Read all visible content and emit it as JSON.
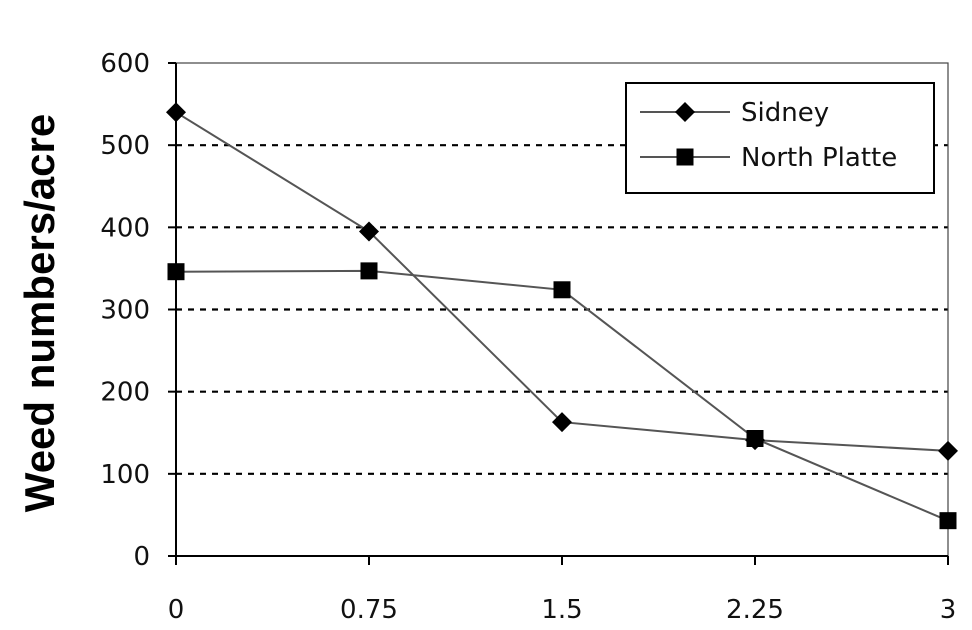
{
  "chart_data": {
    "type": "line",
    "title": "",
    "xlabel": "",
    "ylabel": "Weed numbers/acre",
    "x": [
      0,
      0.75,
      1.5,
      2.25,
      3
    ],
    "x_tick_labels": [
      "0",
      "0.75",
      "1.5",
      "2.25",
      "3"
    ],
    "y_tick_labels": [
      "0",
      "100",
      "200",
      "300",
      "400",
      "500",
      "600"
    ],
    "ylim": [
      0,
      600
    ],
    "grid": "horizontal dashed",
    "legend_position": "top-right",
    "series": [
      {
        "name": "Sidney",
        "marker": "diamond",
        "values": [
          540,
          395,
          163,
          141,
          128
        ]
      },
      {
        "name": "North Platte",
        "marker": "square",
        "values": [
          346,
          347,
          324,
          143,
          43
        ]
      }
    ],
    "colors": {
      "line": "#555555",
      "marker": "#000000",
      "grid": "#000000",
      "axis": "#444444"
    }
  }
}
